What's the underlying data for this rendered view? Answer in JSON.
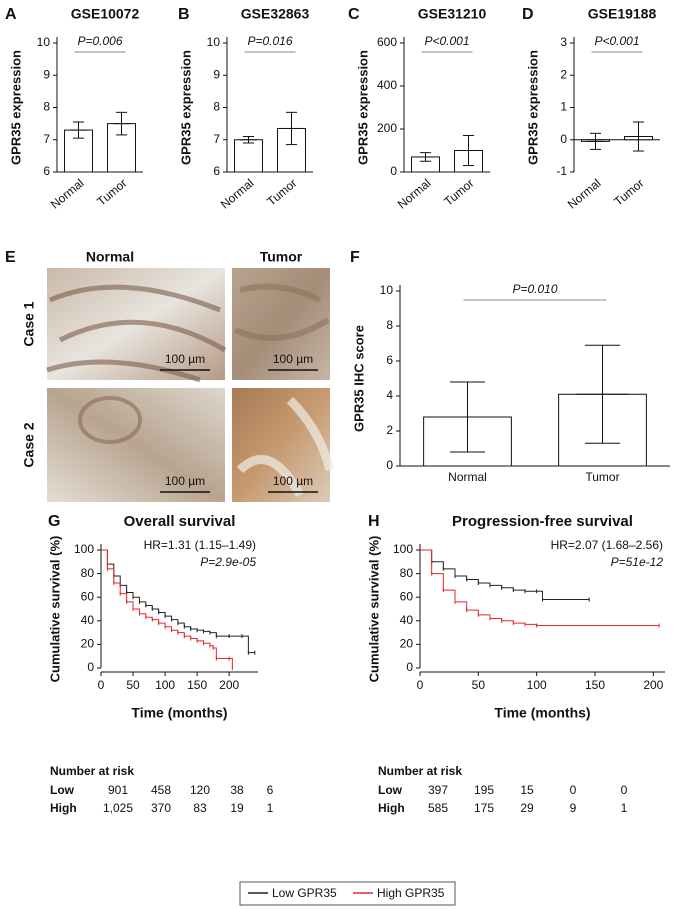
{
  "chart_data": [
    {
      "panel": "A",
      "type": "bar",
      "title": "GSE10072",
      "y_label": "GPR35 expression",
      "categories": [
        "Normal",
        "Tumor"
      ],
      "values": [
        7.3,
        7.5
      ],
      "errors": [
        0.25,
        0.35
      ],
      "ylim": [
        6,
        10
      ],
      "yticks": [
        6,
        7,
        8,
        9,
        10
      ],
      "annotation": "P=0.006"
    },
    {
      "panel": "B",
      "type": "bar",
      "title": "GSE32863",
      "y_label": "GPR35 expression",
      "categories": [
        "Normal",
        "Tumor"
      ],
      "values": [
        7.0,
        7.35
      ],
      "errors": [
        0.1,
        0.5
      ],
      "ylim": [
        6,
        10
      ],
      "yticks": [
        6,
        7,
        8,
        9,
        10
      ],
      "annotation": "P=0.016"
    },
    {
      "panel": "C",
      "type": "bar",
      "title": "GSE31210",
      "y_label": "GPR35 expression",
      "categories": [
        "Normal",
        "Tumor"
      ],
      "values": [
        70,
        100
      ],
      "errors": [
        20,
        70
      ],
      "ylim": [
        0,
        600
      ],
      "yticks": [
        0,
        200,
        400,
        600
      ],
      "annotation": "P<0.001"
    },
    {
      "panel": "D",
      "type": "bar",
      "title": "GSE19188",
      "y_label": "GPR35 expression",
      "categories": [
        "Normal",
        "Tumor"
      ],
      "values": [
        -0.05,
        0.1
      ],
      "errors": [
        0.25,
        0.45
      ],
      "ylim": [
        -1,
        3
      ],
      "yticks": [
        -1,
        0,
        1,
        2,
        3
      ],
      "annotation": "P<0.001"
    },
    {
      "panel": "F",
      "type": "bar",
      "y_label": "GPR35 IHC score",
      "categories": [
        "Normal",
        "Tumor"
      ],
      "values": [
        2.8,
        4.1
      ],
      "errors": [
        2.0,
        2.8
      ],
      "ylim": [
        0,
        10
      ],
      "yticks": [
        0,
        2,
        4,
        6,
        8,
        10
      ],
      "annotation": "P=0.010"
    },
    {
      "panel": "G",
      "type": "line",
      "title": "Overall survival",
      "x_label": "Time (months)",
      "y_label": "Cumulative survival (%)",
      "xlim": [
        0,
        245
      ],
      "xticks": [
        0,
        50,
        100,
        150,
        200
      ],
      "ylim": [
        0,
        100
      ],
      "yticks": [
        0,
        20,
        40,
        60,
        80,
        100
      ],
      "series": [
        {
          "name": "Low GPR35",
          "color": "#222222",
          "x": [
            0,
            10,
            20,
            30,
            40,
            50,
            60,
            70,
            80,
            90,
            100,
            110,
            120,
            130,
            140,
            150,
            160,
            170,
            180,
            200,
            220,
            230,
            240
          ],
          "values": [
            100,
            88,
            78,
            70,
            64,
            60,
            56,
            53,
            50,
            47,
            44,
            41,
            38,
            35,
            33,
            32,
            31,
            30,
            27,
            27,
            27,
            13,
            13
          ]
        },
        {
          "name": "High GPR35",
          "color": "#e8262a",
          "x": [
            0,
            10,
            20,
            30,
            40,
            50,
            60,
            70,
            80,
            90,
            100,
            110,
            120,
            130,
            140,
            150,
            160,
            170,
            175,
            180,
            200,
            205
          ],
          "values": [
            100,
            84,
            72,
            63,
            56,
            50,
            46,
            43,
            41,
            38,
            35,
            32,
            30,
            27,
            25,
            23,
            21,
            19,
            17,
            8,
            8,
            0
          ]
        }
      ],
      "annotations": [
        "HR=1.31 (1.15–1.49)",
        "P=2.9e-05"
      ],
      "risk_table": {
        "title": "Number at risk",
        "rows": [
          {
            "label": "Low",
            "values": [
              "901",
              "458",
              "120",
              "38",
              "6"
            ]
          },
          {
            "label": "High",
            "values": [
              "1,025",
              "370",
              "83",
              "19",
              "1"
            ]
          }
        ]
      }
    },
    {
      "panel": "H",
      "type": "line",
      "title": "Progression-free survival",
      "x_label": "Time (months)",
      "y_label": "Cumulative survival (%)",
      "xlim": [
        0,
        210
      ],
      "xticks": [
        0,
        50,
        100,
        150,
        200
      ],
      "ylim": [
        0,
        100
      ],
      "yticks": [
        0,
        20,
        40,
        60,
        80,
        100
      ],
      "series": [
        {
          "name": "Low GPR35",
          "color": "#222222",
          "x": [
            0,
            10,
            20,
            30,
            40,
            50,
            60,
            70,
            80,
            90,
            100,
            105,
            145
          ],
          "values": [
            100,
            90,
            84,
            78,
            75,
            72,
            70,
            68,
            66,
            65,
            65,
            58,
            58
          ]
        },
        {
          "name": "High GPR35",
          "color": "#e8262a",
          "x": [
            0,
            10,
            20,
            30,
            40,
            50,
            60,
            70,
            80,
            90,
            100,
            205
          ],
          "values": [
            100,
            80,
            66,
            56,
            49,
            45,
            42,
            40,
            38,
            37,
            36,
            36
          ]
        }
      ],
      "annotations": [
        "HR=2.07 (1.68–2.56)",
        "P=51e-12"
      ],
      "risk_table": {
        "title": "Number at risk",
        "rows": [
          {
            "label": "Low",
            "values": [
              "397",
              "195",
              "15",
              "0",
              "0"
            ]
          },
          {
            "label": "High",
            "values": [
              "585",
              "175",
              "29",
              "9",
              "1"
            ]
          }
        ]
      }
    }
  ],
  "ihc": {
    "panel": "E",
    "columns": [
      "Normal",
      "Tumor"
    ],
    "rows": [
      "Case 1",
      "Case 2"
    ],
    "scale_bar": "100 µm"
  }
}
